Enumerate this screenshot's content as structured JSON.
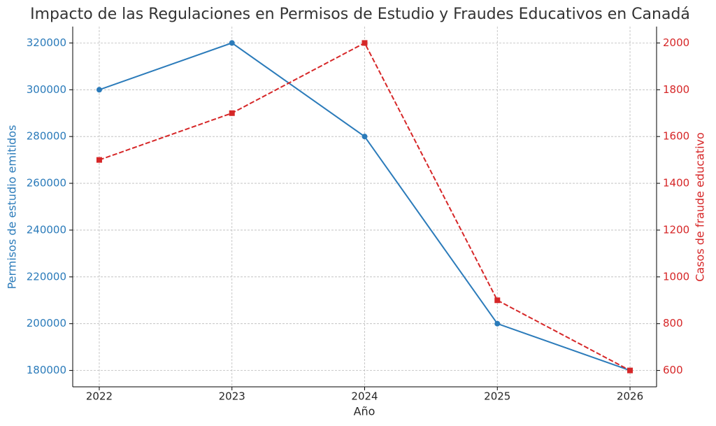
{
  "chart_data": {
    "type": "line",
    "title": "Impacto de las Regulaciones en Permisos de Estudio y Fraudes Educativos en Canadá",
    "x_label": "Año",
    "y_label": "Permisos de estudio emitidos",
    "y2_label": "Casos de fraude educativo",
    "x": [
      2022,
      2023,
      2024,
      2025,
      2026
    ],
    "xlim": [
      2021.8,
      2026.2
    ],
    "xticks": [
      2022,
      2023,
      2024,
      2025,
      2026
    ],
    "ylim": [
      173000,
      327000
    ],
    "yticks": [
      180000,
      200000,
      220000,
      240000,
      260000,
      280000,
      300000,
      320000
    ],
    "y2lim": [
      530,
      2070
    ],
    "y2ticks": [
      600,
      800,
      1000,
      1200,
      1400,
      1600,
      1800,
      2000
    ],
    "grid": true,
    "series": [
      {
        "name": "Permisos de estudio emitidos",
        "color": "#2b7bba",
        "marker": "circle",
        "linestyle": "solid",
        "values": [
          300000,
          320000,
          280000,
          200000,
          180000
        ]
      },
      {
        "name": "Casos de fraude educativo",
        "color": "#d62728",
        "marker": "square",
        "linestyle": "dashed",
        "axis": "y2",
        "values": [
          1500,
          1700,
          2000,
          900,
          600
        ]
      }
    ]
  }
}
